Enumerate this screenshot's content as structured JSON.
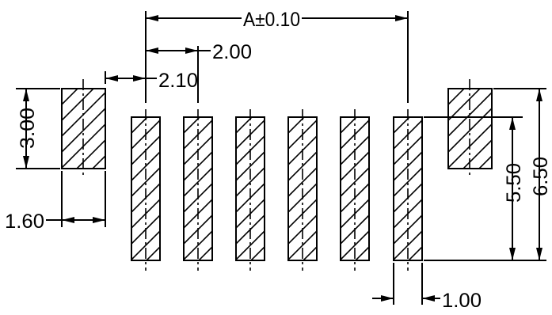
{
  "dimensions": {
    "pitch_total": "A±0.10",
    "pitch": "2.00",
    "pad_offset": "2.10",
    "tab_height": "3.00",
    "tab_width": "1.60",
    "pad_length": "5.50",
    "overall_length": "6.50",
    "pad_width": "1.00"
  },
  "pad_count": 6,
  "colors": {
    "line": "#000000",
    "background": "#ffffff"
  }
}
